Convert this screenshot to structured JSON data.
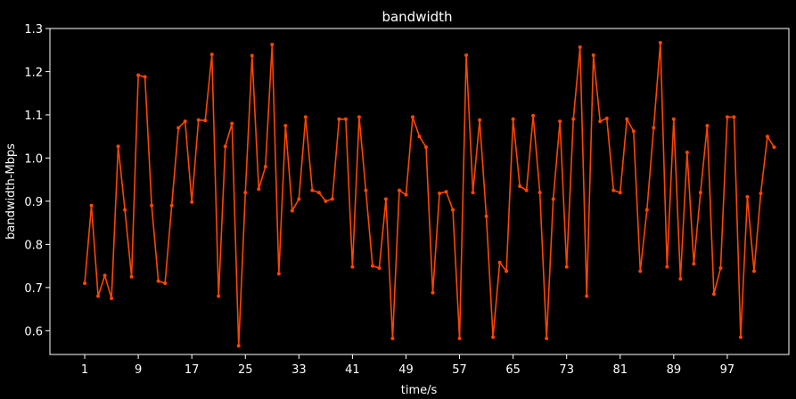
{
  "chart_data": {
    "type": "line",
    "title": "bandwidth",
    "xlabel": "time/s",
    "ylabel": "bandwidth-Mbps",
    "xlim": [
      -4.2,
      106.2
    ],
    "ylim": [
      0.545,
      1.3
    ],
    "grid": false,
    "legend": "none",
    "x_ticks": [
      1,
      9,
      17,
      25,
      33,
      41,
      49,
      57,
      65,
      73,
      81,
      89,
      97
    ],
    "y_ticks": [
      0.6,
      0.7,
      0.8,
      0.9,
      1.0,
      1.1,
      1.2,
      1.3
    ],
    "y_tick_labels": [
      "0.6",
      "0.7",
      "0.8",
      "0.9",
      "1.0",
      "1.1",
      "1.2",
      "1.3"
    ],
    "series": [
      {
        "color": "#ff4500",
        "x": [
          1,
          2,
          3,
          4,
          5,
          6,
          7,
          8,
          9,
          10,
          11,
          12,
          13,
          14,
          15,
          16,
          17,
          18,
          19,
          20,
          21,
          22,
          23,
          24,
          25,
          26,
          27,
          28,
          29,
          30,
          31,
          32,
          33,
          34,
          35,
          36,
          37,
          38,
          39,
          40,
          41,
          42,
          43,
          44,
          45,
          46,
          47,
          48,
          49,
          50,
          51,
          52,
          53,
          54,
          55,
          56,
          57,
          58,
          59,
          60,
          61,
          62,
          63,
          64,
          65,
          66,
          67,
          68,
          69,
          70,
          71,
          72,
          73,
          74,
          75,
          76,
          77,
          78,
          79,
          80,
          81,
          82,
          83,
          84,
          85,
          86,
          87,
          88,
          89,
          90,
          91,
          92,
          93,
          94,
          95,
          96,
          97,
          98,
          99,
          100,
          101,
          102,
          103,
          104
        ],
        "values": [
          0.71,
          0.89,
          0.68,
          0.728,
          0.675,
          1.027,
          0.88,
          0.725,
          1.192,
          1.188,
          0.89,
          0.715,
          0.71,
          0.89,
          1.07,
          1.085,
          0.898,
          1.088,
          1.087,
          1.24,
          0.68,
          1.027,
          1.08,
          0.565,
          0.92,
          1.237,
          0.928,
          0.98,
          1.263,
          0.732,
          1.075,
          0.878,
          0.905,
          1.095,
          0.925,
          0.92,
          0.9,
          0.905,
          1.09,
          1.09,
          0.748,
          1.095,
          0.925,
          0.75,
          0.745,
          0.905,
          0.582,
          0.925,
          0.915,
          1.095,
          1.05,
          1.025,
          0.688,
          0.918,
          0.922,
          0.88,
          0.582,
          1.238,
          0.92,
          1.088,
          0.865,
          0.585,
          0.758,
          0.738,
          1.09,
          0.935,
          0.925,
          1.098,
          0.92,
          0.582,
          0.905,
          1.085,
          0.748,
          1.09,
          1.257,
          0.68,
          1.238,
          1.085,
          1.092,
          0.925,
          0.92,
          1.09,
          1.062,
          0.738,
          0.88,
          1.07,
          1.267,
          0.748,
          1.09,
          0.72,
          1.013,
          0.755,
          0.92,
          1.075,
          0.685,
          0.745,
          1.095,
          1.095,
          0.585,
          0.91,
          0.738,
          0.918,
          1.05,
          1.025
        ]
      }
    ]
  },
  "colors": {
    "background": "#000000",
    "axes": "#ffffff",
    "text": "#ffffff",
    "line": "#ff4500"
  }
}
